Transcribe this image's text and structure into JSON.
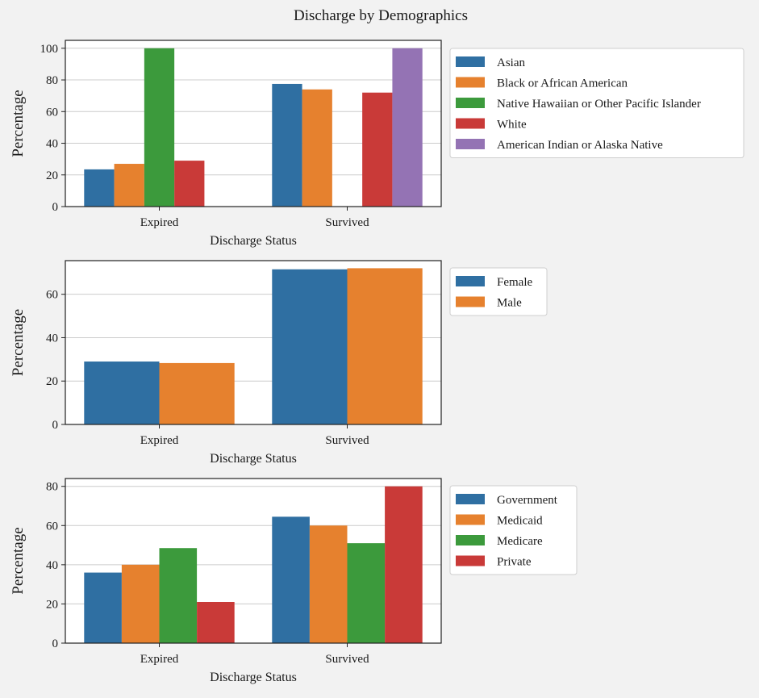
{
  "figure": {
    "title": "Discharge by Demographics"
  },
  "chart_data": [
    {
      "type": "bar",
      "title": "",
      "xlabel": "Discharge Status",
      "ylabel": "Percentage",
      "categories": [
        "Expired",
        "Survived"
      ],
      "yticks": [
        0,
        20,
        40,
        60,
        80,
        100
      ],
      "ylim": [
        0,
        105
      ],
      "grid": true,
      "legend_position": "outside-right",
      "series": [
        {
          "name": "Asian",
          "color": "#2f6fa2",
          "values": [
            23.5,
            77.5
          ]
        },
        {
          "name": "Black or African American",
          "color": "#e6812e",
          "values": [
            27,
            74
          ]
        },
        {
          "name": "Native Hawaiian or Other Pacific Islander",
          "color": "#3c9a3c",
          "values": [
            100,
            0
          ]
        },
        {
          "name": "White",
          "color": "#c93a38",
          "values": [
            29,
            72
          ]
        },
        {
          "name": "American Indian or Alaska Native",
          "color": "#9473b4",
          "values": [
            0,
            100
          ]
        }
      ]
    },
    {
      "type": "bar",
      "title": "",
      "xlabel": "Discharge Status",
      "ylabel": "Percentage",
      "categories": [
        "Expired",
        "Survived"
      ],
      "yticks": [
        0,
        20,
        40,
        60
      ],
      "ylim": [
        0,
        75.5
      ],
      "grid": true,
      "legend_position": "outside-right",
      "series": [
        {
          "name": "Female",
          "color": "#2f6fa2",
          "values": [
            29,
            71.5
          ]
        },
        {
          "name": "Male",
          "color": "#e6812e",
          "values": [
            28.3,
            72
          ]
        }
      ]
    },
    {
      "type": "bar",
      "title": "",
      "xlabel": "Discharge Status",
      "ylabel": "Percentage",
      "categories": [
        "Expired",
        "Survived"
      ],
      "yticks": [
        0,
        20,
        40,
        60,
        80
      ],
      "ylim": [
        0,
        84
      ],
      "grid": true,
      "legend_position": "outside-right",
      "series": [
        {
          "name": "Government",
          "color": "#2f6fa2",
          "values": [
            36,
            64.5
          ]
        },
        {
          "name": "Medicaid",
          "color": "#e6812e",
          "values": [
            40,
            60
          ]
        },
        {
          "name": "Medicare",
          "color": "#3c9a3c",
          "values": [
            48.5,
            51
          ]
        },
        {
          "name": "Private",
          "color": "#c93a38",
          "values": [
            21,
            80
          ]
        }
      ]
    }
  ]
}
